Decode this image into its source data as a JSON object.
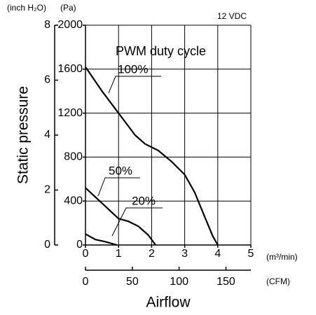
{
  "chart_data": {
    "type": "line",
    "title": "PWM duty cycle",
    "subtitle": "12 VDC",
    "y_label": "Static pressure",
    "x_label": "Airflow",
    "y_unit": "(Pa)",
    "y2_unit": "(inch H₂O)",
    "x_unit": "(m³/min)",
    "x2_unit": "(CFM)",
    "xlim": [
      0,
      5
    ],
    "xticks": [
      0,
      1,
      2,
      3,
      4,
      5
    ],
    "x2lim": [
      0,
      176.57
    ],
    "x2ticks": [
      0,
      50,
      100,
      150
    ],
    "ylim": [
      0,
      2000
    ],
    "yticks": [
      0,
      400,
      800,
      1200,
      1600,
      2000
    ],
    "y2lim": [
      0,
      8
    ],
    "y2ticks": [
      0,
      2,
      4,
      6,
      8
    ],
    "grid": true,
    "series": [
      {
        "name": "100%",
        "color": "#000000",
        "x": [
          0,
          0.5,
          1,
          1.5,
          1.8,
          2.2,
          2.6,
          3,
          3.3,
          3.6,
          3.85,
          4
        ],
        "values": [
          1620,
          1400,
          1200,
          1000,
          920,
          860,
          760,
          640,
          480,
          260,
          80,
          0
        ]
      },
      {
        "name": "50%",
        "color": "#000000",
        "x": [
          0,
          0.5,
          1,
          1.3,
          1.6,
          1.9,
          2.12
        ],
        "values": [
          520,
          380,
          240,
          215,
          170,
          90,
          0
        ]
      },
      {
        "name": "20%",
        "color": "#000000",
        "x": [
          0,
          0.3,
          0.6,
          0.95
        ],
        "values": [
          100,
          50,
          30,
          0
        ]
      }
    ]
  }
}
